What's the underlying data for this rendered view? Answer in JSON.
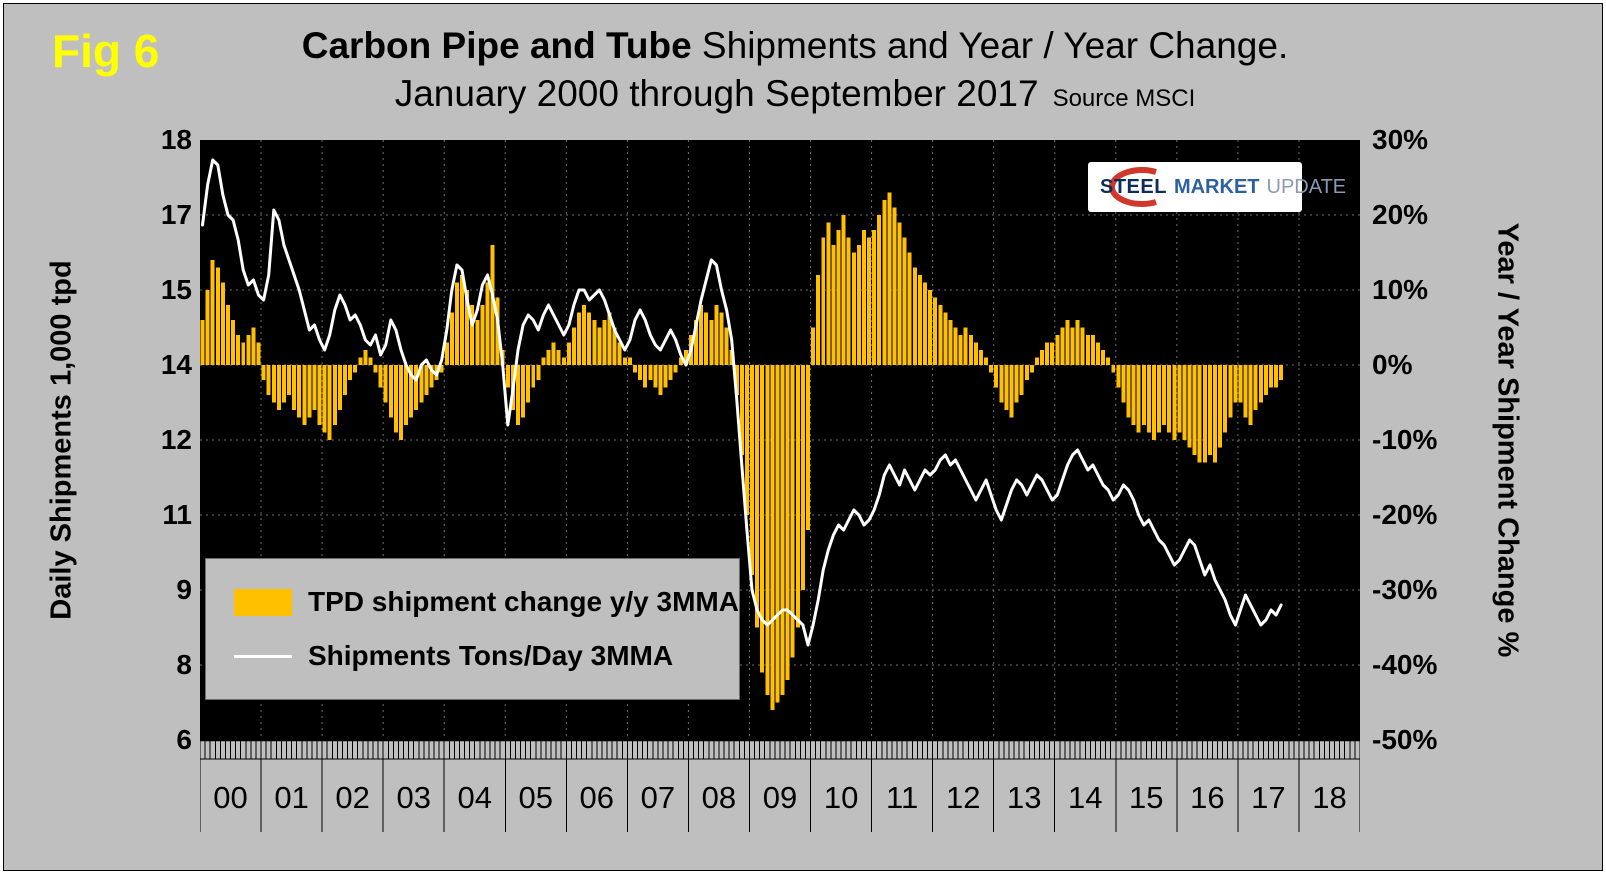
{
  "figure_label": "Fig 6",
  "title": {
    "line1_bold": "Carbon Pipe and Tube",
    "line1_rest": " Shipments and Year / Year Change.",
    "line2": "January 2000 through September 2017",
    "source": "Source MSCI"
  },
  "axes": {
    "left_title": "Daily Shipments 1,000 tpd",
    "left_ticks": [
      "18",
      "17",
      "15",
      "14",
      "12",
      "11",
      "9",
      "8",
      "6"
    ],
    "right_title": "Year / Year Shipment Change %",
    "right_ticks": [
      "30%",
      "20%",
      "10%",
      "0%",
      "-10%",
      "-20%",
      "-30%",
      "-40%",
      "-50%"
    ],
    "x_years": [
      "00",
      "01",
      "02",
      "03",
      "04",
      "05",
      "06",
      "07",
      "08",
      "09",
      "10",
      "11",
      "12",
      "13",
      "14",
      "15",
      "16",
      "17",
      "18"
    ]
  },
  "legend": {
    "bar_label": "TPD shipment change y/y 3MMA",
    "line_label": "Shipments Tons/Day 3MMA"
  },
  "logo": {
    "steel": "STEEL",
    "market": "MARKET",
    "update": "UPDATE"
  },
  "colors": {
    "background": "#BFBFBF",
    "plot_background": "#000000",
    "bar": "#FFC000",
    "line": "#FFFFFF",
    "fig_label": "#FFFF00",
    "gridline": "#6E6E6E",
    "logo_red": "#D2372C"
  },
  "chart_data": {
    "type": "bar+line",
    "title": "Carbon Pipe and Tube Shipments and Year / Year Change. January 2000 through September 2017",
    "source": "MSCI",
    "x_start": "2000-01",
    "x_end": "2017-09",
    "left_axis": {
      "label": "Daily Shipments 1,000 tpd",
      "min": 6,
      "max": 18,
      "tick_step": 1.5
    },
    "right_axis": {
      "label": "Year / Year Shipment Change %",
      "min": -50,
      "max": 30,
      "tick_step": 10,
      "unit": "%"
    },
    "x_year_cells": 19,
    "series": [
      {
        "name": "TPD shipment change y/y 3MMA",
        "type": "bar",
        "axis": "right",
        "unit": "%",
        "values": [
          6,
          10,
          14,
          13,
          11,
          8,
          6,
          4,
          3,
          4,
          5,
          3,
          -2,
          -4,
          -5,
          -6,
          -5,
          -4,
          -6,
          -7,
          -8,
          -7,
          -6,
          -8,
          -9,
          -10,
          -8,
          -6,
          -4,
          -2,
          -1,
          1,
          2,
          1,
          -1,
          -3,
          -5,
          -7,
          -9,
          -10,
          -8,
          -7,
          -6,
          -5,
          -4,
          -3,
          -2,
          -1,
          3,
          7,
          11,
          12,
          10,
          8,
          6,
          8,
          11,
          16,
          9,
          2,
          -3,
          -6,
          -8,
          -7,
          -5,
          -3,
          -2,
          1,
          2,
          3,
          2,
          1,
          3,
          5,
          7,
          8,
          7,
          6,
          5,
          6,
          7,
          5,
          3,
          1,
          1,
          -1,
          -2,
          -3,
          -2,
          -3,
          -4,
          -3,
          -2,
          -1,
          1,
          2,
          4,
          6,
          8,
          7,
          6,
          8,
          7,
          5,
          2,
          -4,
          -12,
          -20,
          -28,
          -35,
          -41,
          -44,
          -46,
          -45,
          -44,
          -42,
          -39,
          -35,
          -30,
          -22,
          5,
          12,
          17,
          19,
          16,
          18,
          20,
          17,
          15,
          16,
          18,
          17,
          18,
          20,
          22,
          23,
          21,
          19,
          17,
          15,
          13,
          12,
          11,
          10,
          9,
          8,
          7,
          6,
          5,
          4,
          5,
          4,
          3,
          2,
          1,
          -1,
          -3,
          -5,
          -6,
          -7,
          -5,
          -4,
          -2,
          -1,
          1,
          2,
          3,
          3,
          4,
          5,
          6,
          5,
          6,
          5,
          4,
          4,
          3,
          2,
          1,
          -1,
          -3,
          -5,
          -7,
          -8,
          -9,
          -8,
          -9,
          -10,
          -9,
          -8,
          -9,
          -10,
          -9,
          -10,
          -11,
          -12,
          -13,
          -13,
          -12,
          -13,
          -11,
          -9,
          -7,
          -5,
          -5,
          -7,
          -8,
          -6,
          -5,
          -4,
          -3,
          -3,
          -2
        ]
      },
      {
        "name": "Shipments Tons/Day 3MMA",
        "type": "line",
        "axis": "left",
        "unit": "1,000 tpd",
        "values": [
          16.3,
          17.1,
          17.6,
          17.5,
          16.9,
          16.5,
          16.4,
          16.0,
          15.4,
          15.1,
          15.2,
          14.9,
          14.8,
          15.3,
          16.6,
          16.4,
          15.9,
          15.6,
          15.3,
          15.0,
          14.6,
          14.2,
          14.3,
          14.0,
          13.8,
          14.1,
          14.6,
          14.9,
          14.7,
          14.4,
          14.5,
          14.3,
          14.0,
          13.9,
          14.1,
          13.7,
          13.9,
          14.4,
          14.2,
          13.8,
          13.5,
          13.3,
          13.2,
          13.5,
          13.6,
          13.4,
          13.3,
          13.6,
          14.2,
          15.0,
          15.5,
          15.4,
          14.8,
          14.3,
          14.6,
          15.1,
          15.3,
          14.9,
          14.4,
          13.5,
          12.3,
          13.0,
          13.8,
          14.3,
          14.5,
          14.4,
          14.2,
          14.5,
          14.7,
          14.5,
          14.3,
          14.1,
          14.3,
          14.7,
          15.0,
          15.0,
          14.8,
          14.9,
          15.0,
          14.8,
          14.5,
          14.2,
          14.0,
          13.8,
          14.0,
          14.4,
          14.6,
          14.4,
          14.1,
          13.9,
          13.8,
          14.0,
          14.2,
          14.0,
          13.7,
          13.5,
          13.8,
          14.3,
          14.8,
          15.2,
          15.6,
          15.5,
          15.0,
          14.6,
          14.0,
          12.8,
          11.5,
          10.2,
          9.0,
          8.6,
          8.4,
          8.3,
          8.4,
          8.5,
          8.6,
          8.6,
          8.5,
          8.4,
          8.3,
          7.9,
          8.3,
          8.8,
          9.4,
          9.8,
          10.1,
          10.3,
          10.2,
          10.4,
          10.6,
          10.5,
          10.3,
          10.4,
          10.6,
          10.9,
          11.3,
          11.5,
          11.3,
          11.1,
          11.4,
          11.2,
          11.0,
          11.2,
          11.4,
          11.3,
          11.4,
          11.6,
          11.7,
          11.5,
          11.6,
          11.4,
          11.2,
          11.0,
          10.8,
          11.0,
          11.2,
          10.9,
          10.6,
          10.4,
          10.7,
          11.0,
          11.2,
          11.1,
          10.9,
          11.1,
          11.3,
          11.2,
          11.0,
          10.8,
          10.9,
          11.2,
          11.5,
          11.7,
          11.8,
          11.6,
          11.4,
          11.5,
          11.3,
          11.1,
          11.0,
          10.8,
          10.9,
          11.1,
          11.0,
          10.8,
          10.5,
          10.3,
          10.4,
          10.2,
          10.0,
          9.9,
          9.7,
          9.5,
          9.6,
          9.8,
          10.0,
          9.9,
          9.6,
          9.3,
          9.5,
          9.2,
          9.0,
          8.8,
          8.5,
          8.3,
          8.6,
          8.9,
          8.7,
          8.5,
          8.3,
          8.4,
          8.6,
          8.5,
          8.7
        ]
      }
    ]
  }
}
